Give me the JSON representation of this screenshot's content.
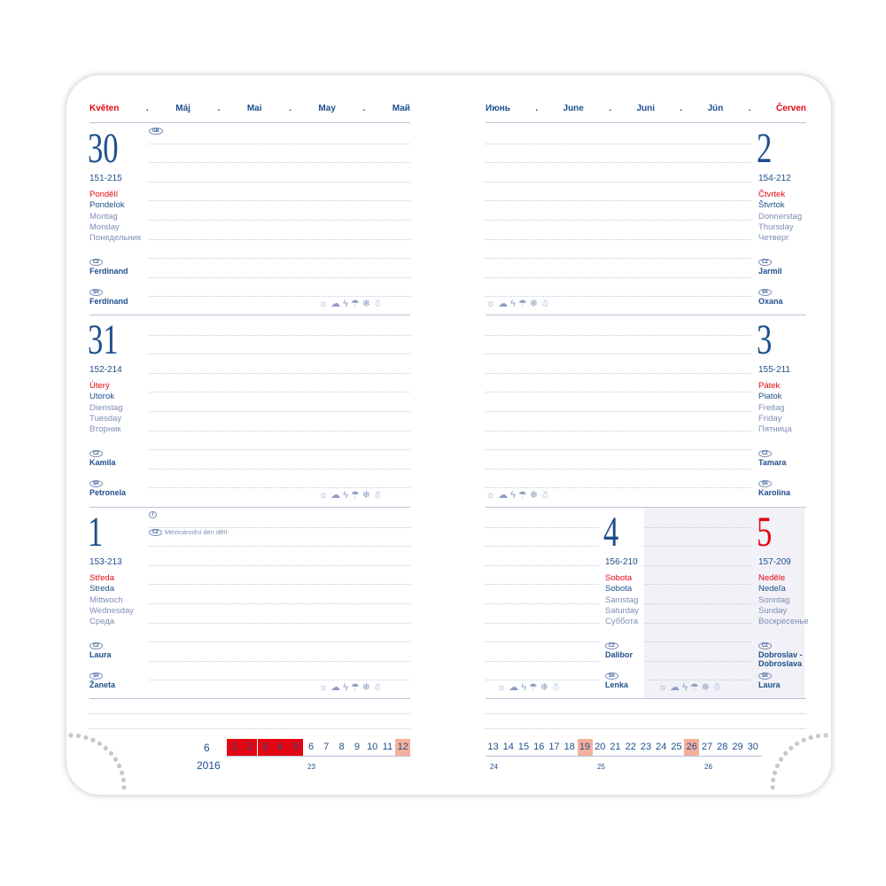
{
  "header_left": [
    "Květen",
    ".",
    "Máj",
    ".",
    "Mai",
    ".",
    "May",
    ".",
    "Май"
  ],
  "header_right": [
    "Июнь",
    ".",
    "June",
    ".",
    "Juni",
    ".",
    "Jún",
    ".",
    "Červen"
  ],
  "weather_icons": [
    "sun-icon",
    "sun-cloud-icon",
    "lightning-icon",
    "rain-icon",
    "snow-icon",
    "snow-cloud-icon"
  ],
  "weather_glyphs": "☼☁ϟ☂❄☃",
  "colors": {
    "accent_red": "#e30613",
    "dark_blue": "#1d4f8c",
    "light_blue": "#7d8db5",
    "sunday_shade": "#f1f1f7",
    "holiday_peach": "#f4b09a"
  },
  "days": [
    {
      "num": "30",
      "code": "151-215",
      "names": [
        "Pondělí",
        "Pondelok",
        "Montag",
        "Monday",
        "Понедельник"
      ],
      "cz_badge": "CZ",
      "cz": "Ferdinand",
      "sk_badge": "SK",
      "sk": "Ferdinand",
      "badges": [
        {
          "label": "GB",
          "text": ""
        }
      ]
    },
    {
      "num": "31",
      "code": "152-214",
      "names": [
        "Úterý",
        "Utorok",
        "Dienstag",
        "Tuesday",
        "Вторник"
      ],
      "cz_badge": "CZ",
      "cz": "Kamila",
      "sk_badge": "SK",
      "sk": "Petronela",
      "badges": []
    },
    {
      "num": "1",
      "code": "153-213",
      "names": [
        "Středa",
        "Streda",
        "Mittwoch",
        "Wednesday",
        "Среда"
      ],
      "cz_badge": "CZ",
      "cz": "Laura",
      "sk_badge": "SK",
      "sk": "Žaneta",
      "badges": [
        {
          "label": "I",
          "text": ""
        },
        {
          "label": "CZ",
          "text": "Mezinárodní den dětí"
        }
      ]
    },
    {
      "num": "2",
      "code": "154-212",
      "names": [
        "Čtvrtek",
        "Štvrtok",
        "Donnerstag",
        "Thursday",
        "Четверг"
      ],
      "cz_badge": "CZ",
      "cz": "Jarmil",
      "sk_badge": "SK",
      "sk": "Oxana",
      "badges": []
    },
    {
      "num": "3",
      "code": "155-211",
      "names": [
        "Pátek",
        "Piatok",
        "Freitag",
        "Friday",
        "Пятница"
      ],
      "cz_badge": "CZ",
      "cz": "Tamara",
      "sk_badge": "SK",
      "sk": "Karolína",
      "badges": []
    },
    {
      "num": "4",
      "code": "156-210",
      "names": [
        "Sobota",
        "Sobota",
        "Samstag",
        "Saturday",
        "Суббота"
      ],
      "cz_badge": "CZ",
      "cz": "Dalibor",
      "sk_badge": "SK",
      "sk": "Lenka",
      "badges": []
    },
    {
      "num": "5",
      "code": "157-209",
      "names": [
        "Neděle",
        "Nedeľa",
        "Sonntag",
        "Sunday",
        "Воскресенье"
      ],
      "cz_badge": "CZ",
      "cz": "Dobroslav -\nDobroslava",
      "sk_badge": "SK",
      "sk": "Laura",
      "badges": [],
      "holiday": true
    }
  ],
  "mini_calendar": {
    "month": "6",
    "year": "2016",
    "days": [
      "1",
      "2",
      "3",
      "4",
      "5",
      "6",
      "7",
      "8",
      "9",
      "10",
      "11",
      "12",
      "13",
      "14",
      "15",
      "16",
      "17",
      "18",
      "19",
      "20",
      "21",
      "22",
      "23",
      "24",
      "25",
      "26",
      "27",
      "28",
      "29",
      "30"
    ],
    "current_week_days": [
      "1",
      "2",
      "3",
      "4",
      "5"
    ],
    "sundays": [
      "12",
      "19",
      "26"
    ],
    "weeks": [
      "23",
      "24",
      "25",
      "26"
    ]
  }
}
